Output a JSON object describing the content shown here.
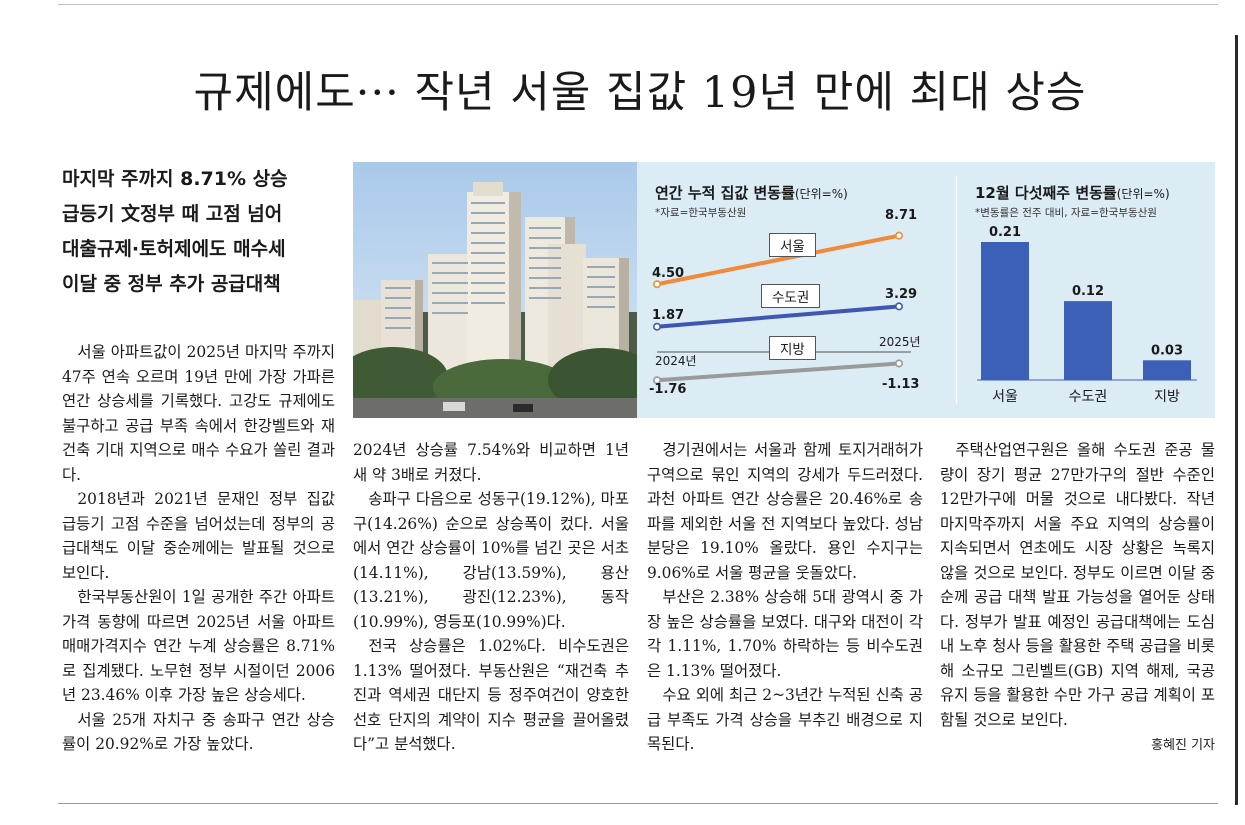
{
  "article": {
    "headline": "규제에도··· 작년 서울 집값 19년 만에 최대 상승",
    "subheadlines": [
      "마지막 주까지 8.71% 상승",
      "급등기 文정부 때 고점 넘어",
      "대출규제·토허제에도 매수세",
      "이달 중 정부 추가 공급대책"
    ],
    "col1": [
      "서울 아파트값이 2025년 마지막 주까지 47주 연속 오르며 19년 만에 가장 가파른 연간 상승세를 기록했다. 고강도 규제에도 불구하고 공급 부족 속에서 한강벨트와 재건축 기대 지역으로 매수 수요가 쏠린 결과다.",
      "2018년과 2021년 문재인 정부 집값 급등기 고점 수준을 넘어섰는데 정부의 공급대책도 이달 중순께에는 발표될 것으로 보인다.",
      "한국부동산원이 1일 공개한 주간 아파트 가격 동향에 따르면 2025년 서울 아파트 매매가격지수 연간 누계 상승률은 8.71%로 집계됐다. 노무현 정부 시절이던 2006년 23.46% 이후 가장 높은 상승세다.",
      "서울 25개 자치구 중 송파구 연간 상승률이 20.92%로 가장 높았다."
    ],
    "col2": [
      "2024년 상승률 7.54%와 비교하면 1년 새 약 3배로 커졌다.",
      "송파구 다음으로 성동구(19.12%), 마포구(14.26%) 순으로 상승폭이 컸다. 서울에서 연간 상승률이 10%를 넘긴 곳은 서초(14.11%), 강남(13.59%), 용산(13.21%), 광진(12.23%), 동작(10.99%), 영등포(10.99%)다.",
      "전국 상승률은 1.02%다. 비수도권은 1.13% 떨어졌다. 부동산원은 “재건축 추진과 역세권 대단지 등 정주여건이 양호한 선호 단지의 계약이 지수 평균을 끌어올렸다”고 분석했다."
    ],
    "col3": [
      "경기권에서는 서울과 함께 토지거래허가구역으로 묶인 지역의 강세가 두드러졌다. 과천 아파트 연간 상승률은 20.46%로 송파를 제외한 서울 전 지역보다 높았다. 성남 분당은 19.10% 올랐다. 용인 수지구는 9.06%로 서울 평균을 웃돌았다.",
      "부산은 2.38% 상승해 5대 광역시 중 가장 높은 상승률을 보였다. 대구와 대전이 각각 1.11%, 1.70% 하락하는 등 비수도권은 1.13% 떨어졌다.",
      "수요 외에 최근 2~3년간 누적된 신축 공급 부족도 가격 상승을 부추긴 배경으로 지목된다."
    ],
    "col4": [
      "주택산업연구원은 올해 수도권 준공 물량이 장기 평균 27만가구의 절반 수준인 12만가구에 머물 것으로 내다봤다. 작년 마지막주까지 서울 주요 지역의 상승률이 지속되면서 연초에도 시장 상황은 녹록지 않을 것으로 보인다. 정부도 이르면 이달 중순께 공급 대책 발표 가능성을 열어둔 상태다. 정부가 발표 예정인 공급대책에는 도심 내 노후 청사 등을 활용한 주택 공급을 비롯해 소규모 그린벨트(GB) 지역 해제, 국공유지 등을 활용한 수만 가구 공급 계획이 포함될 것으로 보인다."
    ],
    "byline": "홍혜진 기자"
  },
  "chart_data": [
    {
      "type": "line",
      "title": "연간 누적 집값 변동률",
      "unit": "(단위=%)",
      "source": "*자료=한국부동산원",
      "x": [
        "2024년",
        "2025년"
      ],
      "series": [
        {
          "name": "서울",
          "values": [
            4.5,
            8.71
          ],
          "color": "#ef8a3a"
        },
        {
          "name": "수도권",
          "values": [
            1.87,
            3.29
          ],
          "color": "#3f57b3"
        },
        {
          "name": "지방",
          "values": [
            -1.76,
            -1.13
          ],
          "color": "#9a9a9a"
        }
      ],
      "labels": {
        "seoul": [
          "4.50",
          "8.71"
        ],
        "capital": [
          "1.87",
          "3.29"
        ],
        "local": [
          "-1.76",
          "-1.13"
        ]
      }
    },
    {
      "type": "bar",
      "title": "12월 다섯째주 변동률",
      "unit": "(단위=%)",
      "source": "*변동률은 전주 대비, 자료=한국부동산원",
      "categories": [
        "서울",
        "수도권",
        "지방"
      ],
      "values": [
        0.21,
        0.12,
        0.03
      ],
      "value_labels": [
        "0.21",
        "0.12",
        "0.03"
      ],
      "color": "#3c5fb8"
    }
  ]
}
